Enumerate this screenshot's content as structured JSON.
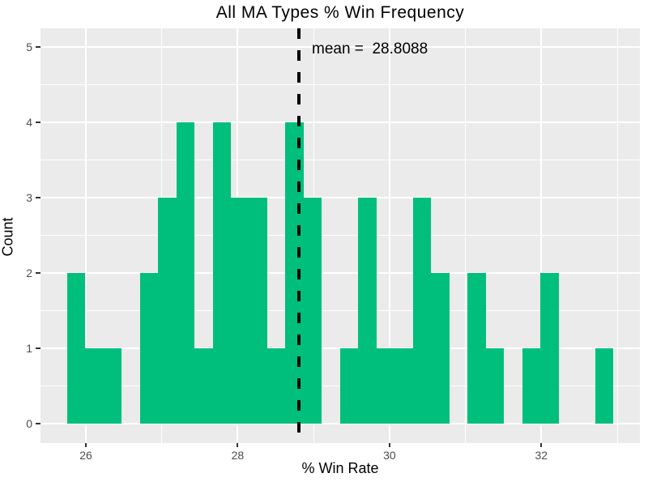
{
  "title": "All MA Types % Win Frequency",
  "annotation": {
    "text": "mean =  28.8088",
    "mean_value": 28.8088
  },
  "axes": {
    "x": {
      "label": "% Win Rate",
      "major_ticks": [
        26,
        28,
        30,
        32
      ],
      "minor_ticks": [
        27,
        29,
        31,
        33
      ],
      "range": [
        25.4,
        33.3
      ]
    },
    "y": {
      "label": "Count",
      "major_ticks": [
        0,
        1,
        2,
        3,
        4,
        5
      ],
      "minor_ticks": [
        0.5,
        1.5,
        2.5,
        3.5,
        4.5
      ],
      "range": [
        -0.26,
        5.26
      ]
    }
  },
  "colors": {
    "bar_fill": "#00BF7C",
    "panel_background": "#EBEBEB",
    "gridline": "#FFFFFF",
    "mean_line": "#000000",
    "tick_label": "#4D4D4D",
    "text": "#000000"
  },
  "chart_data": {
    "type": "bar",
    "subtype": "histogram",
    "title": "All MA Types % Win Frequency",
    "xlabel": "% Win Rate",
    "ylabel": "Count",
    "xlim": [
      25.4,
      33.3
    ],
    "ylim": [
      0,
      5
    ],
    "grid": true,
    "legend": false,
    "bin_start": 25.75,
    "bin_width": 0.24,
    "bin_counts": [
      2,
      1,
      1,
      0,
      2,
      3,
      4,
      1,
      4,
      3,
      3,
      1,
      4,
      3,
      0,
      1,
      3,
      1,
      1,
      3,
      2,
      0,
      2,
      1,
      0,
      1,
      2,
      0,
      0,
      1
    ],
    "total_observations": 50,
    "mean": 28.8088,
    "mean_line_style": "dashed",
    "x_tick_labels": [
      "26",
      "28",
      "30",
      "32"
    ],
    "y_tick_labels": [
      "0",
      "1",
      "2",
      "3",
      "4",
      "5"
    ]
  }
}
